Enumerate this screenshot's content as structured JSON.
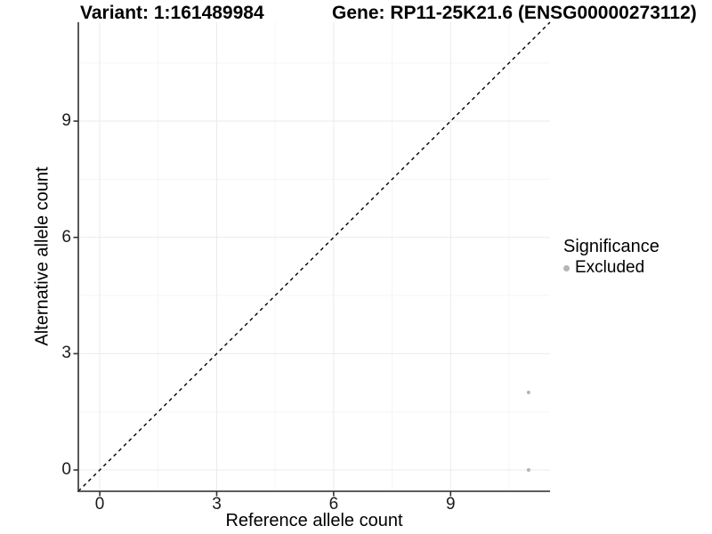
{
  "chart_data": {
    "type": "scatter",
    "title_left": "Variant: 1:161489984",
    "title_right": "Gene: RP11-25K21.6 (ENSG00000273112)",
    "xlabel": "Reference allele count",
    "ylabel": "Alternative allele count",
    "x_ticks": [
      0,
      3,
      6,
      9
    ],
    "y_ticks": [
      0,
      3,
      6,
      9
    ],
    "x_minor_ticks": [
      1.5,
      4.5,
      7.5,
      10.5
    ],
    "y_minor_ticks": [
      1.5,
      4.5,
      7.5,
      10.5
    ],
    "xlim": [
      -0.55,
      11.55
    ],
    "ylim": [
      -0.55,
      11.55
    ],
    "grid": true,
    "identity_line": {
      "style": "dashed",
      "from": [
        -0.55,
        -0.55
      ],
      "to": [
        11.55,
        11.55
      ]
    },
    "series": [
      {
        "name": "Excluded",
        "color": "#b5b5b5",
        "points": [
          {
            "x": 11,
            "y": 2
          },
          {
            "x": 11,
            "y": 0
          }
        ]
      }
    ],
    "legend": {
      "position": "right",
      "title": "Significance",
      "items": [
        {
          "label": "Excluded",
          "color": "#b5b5b5"
        }
      ]
    },
    "colors": {
      "background": "#ffffff",
      "axis_line": "#464646",
      "tick_mark": "#333333",
      "grid_major": "#ebebeb",
      "grid_minor": "#f5f5f5",
      "identity_line": "#000000",
      "text": "#000000"
    }
  }
}
